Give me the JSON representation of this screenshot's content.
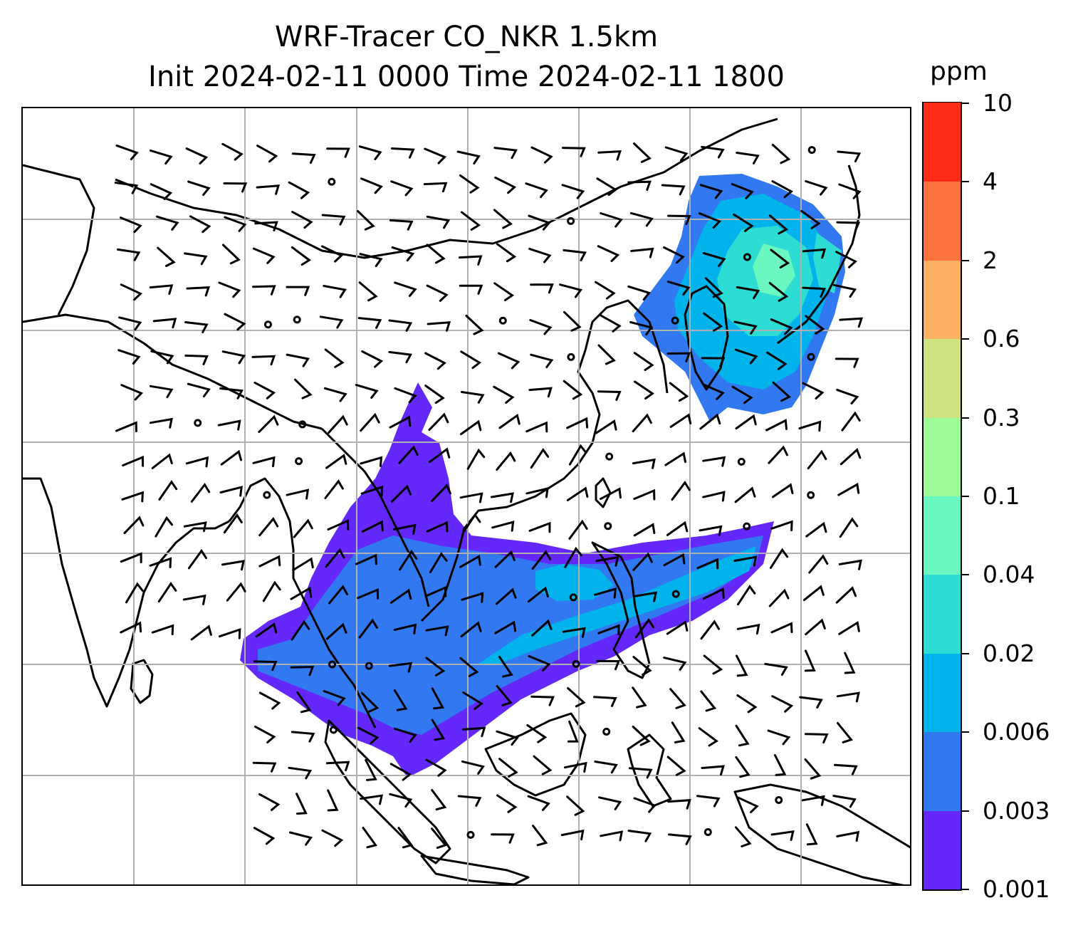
{
  "title": {
    "line1": "WRF-Tracer CO_NKR 1.5km",
    "line2": "Init 2024-02-11 0000 Time 2024-02-11 1800"
  },
  "colorbar": {
    "unit": "ppm",
    "levels": [
      "0.001",
      "0.003",
      "0.006",
      "0.02",
      "0.04",
      "0.1",
      "0.3",
      "0.6",
      "2",
      "4",
      "10"
    ],
    "colors": [
      "#6428fa",
      "#3278f0",
      "#00b4eb",
      "#2ddcd2",
      "#6af7c0",
      "#9cfa98",
      "#cfe282",
      "#fcb062",
      "#fc723d",
      "#ff2a18"
    ]
  },
  "map": {
    "gridlines": true,
    "wind_barbs": true,
    "tracer_plumes": [
      "northeast-china-korea",
      "indochina-south-china-sea"
    ]
  }
}
